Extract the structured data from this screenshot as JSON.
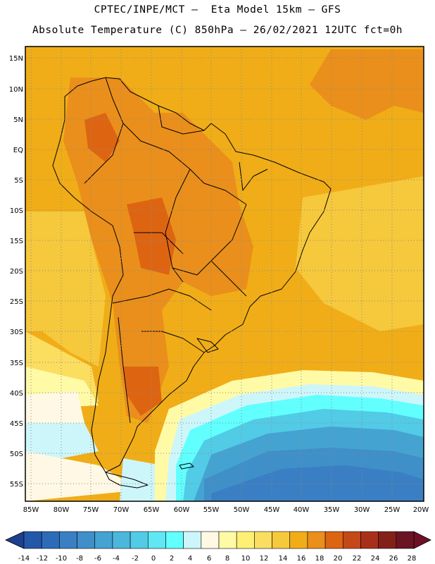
{
  "title": {
    "line1": "CPTEC/INPE/MCT –  Eta Model 15km – GFS",
    "line2": "Absolute Temperature (C) 850hPa – 26/02/2021 12UTC fct=0h"
  },
  "map": {
    "lat_ticks": [
      "15N",
      "10N",
      "5N",
      "EQ",
      "5S",
      "10S",
      "15S",
      "20S",
      "25S",
      "30S",
      "35S",
      "40S",
      "45S",
      "50S",
      "55S"
    ],
    "lon_ticks": [
      "85W",
      "80W",
      "75W",
      "70W",
      "65W",
      "60W",
      "55W",
      "50W",
      "45W",
      "40W",
      "35W",
      "30W",
      "25W",
      "20W"
    ],
    "grid": "dotted"
  },
  "colorbar": {
    "labels": [
      "-14",
      "-12",
      "-10",
      "-8",
      "-6",
      "-4",
      "-2",
      "0",
      "2",
      "4",
      "6",
      "8",
      "10",
      "12",
      "14",
      "16",
      "18",
      "20",
      "22",
      "24",
      "26",
      "28"
    ],
    "colors": [
      "#1e3f8f",
      "#2357a8",
      "#2c6bb8",
      "#3a7fc4",
      "#3f8fc9",
      "#45a3d2",
      "#4cb6dc",
      "#52cbe6",
      "#60e6f4",
      "#62ffff",
      "#cdf6fa",
      "#fff8e4",
      "#fffaa6",
      "#fdf074",
      "#fbde60",
      "#f6c83c",
      "#f0ad17",
      "#ea8f1b",
      "#dd6512",
      "#c54818",
      "#a8301b",
      "#84201a",
      "#6b1522"
    ],
    "end_color": "#6f1126"
  }
}
